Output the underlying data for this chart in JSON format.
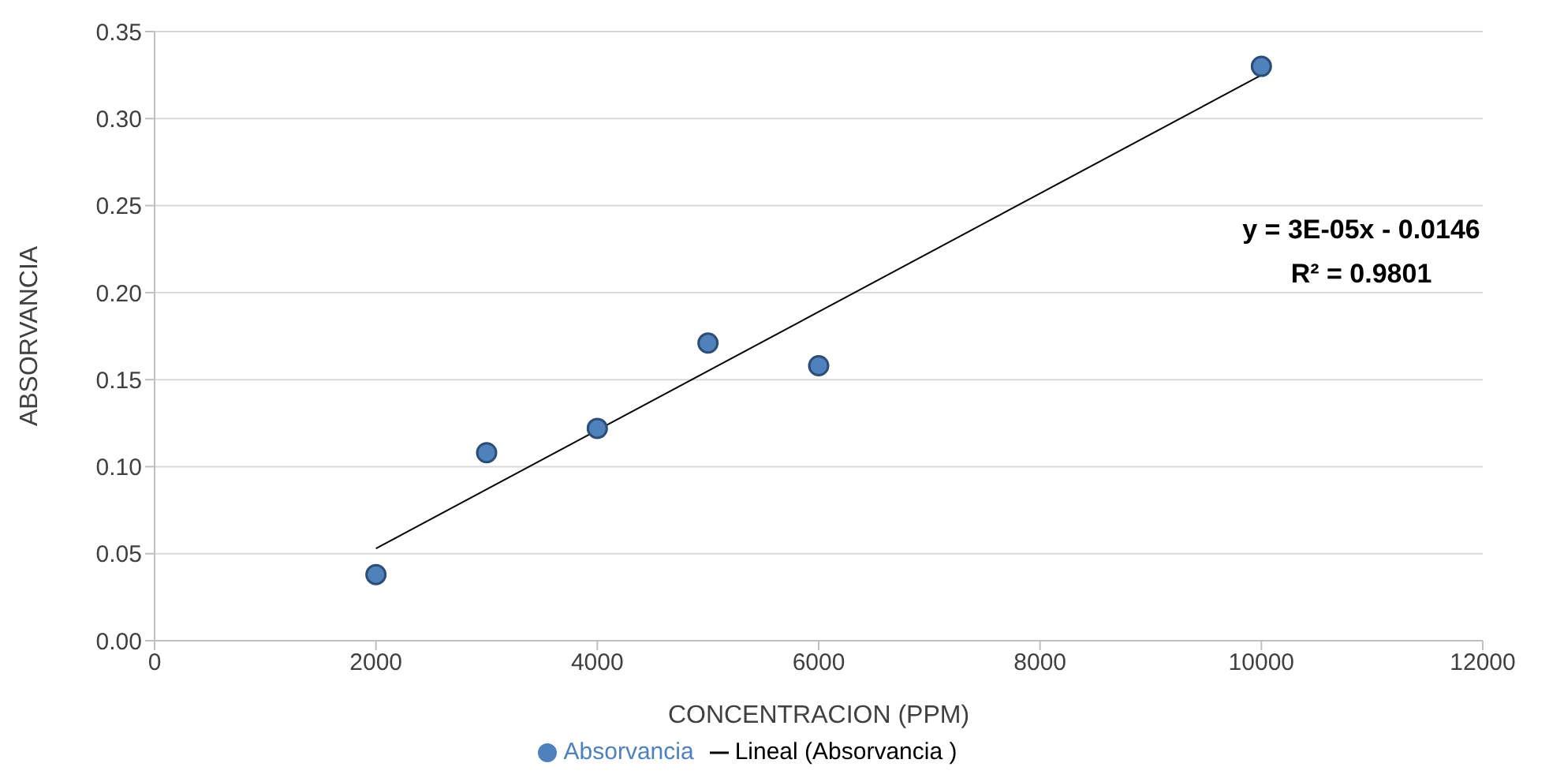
{
  "chart_data": {
    "type": "scatter",
    "xlabel": "CONCENTRACION (PPM)",
    "ylabel": "ABSORVANCIA",
    "xlim": [
      0,
      12000
    ],
    "xticks": [
      0,
      2000,
      4000,
      6000,
      8000,
      10000,
      12000
    ],
    "ylim": [
      0,
      0.35
    ],
    "yticks": [
      {
        "value": 0,
        "label": "0.00"
      },
      {
        "value": 0.05,
        "label": "0.05"
      },
      {
        "value": 0.1,
        "label": "0.10"
      },
      {
        "value": 0.15,
        "label": "0.15"
      },
      {
        "value": 0.2,
        "label": "0.20"
      },
      {
        "value": 0.25,
        "label": "0.25"
      },
      {
        "value": 0.3,
        "label": "0.30"
      },
      {
        "value": 0.35,
        "label": "0.35"
      }
    ],
    "grid": "y",
    "legend": "bottom",
    "marker": "circle",
    "annotations": [
      "y = 3E-05x - 0.0146",
      "R² = 0.9801"
    ],
    "series": [
      {
        "name": "Absorvancia",
        "type": "scatter",
        "color": "#4f81bd",
        "x": [
          2000,
          3000,
          4000,
          5000,
          6000,
          10000
        ],
        "values": [
          0.038,
          0.108,
          0.122,
          0.171,
          0.158,
          0.33
        ]
      },
      {
        "name": "Lineal (Absorvancia )",
        "type": "line",
        "color": "#000000",
        "line_style": "solid",
        "marker": "none",
        "x": [
          2000,
          10000
        ],
        "values": [
          0.053,
          0.325
        ]
      }
    ]
  }
}
